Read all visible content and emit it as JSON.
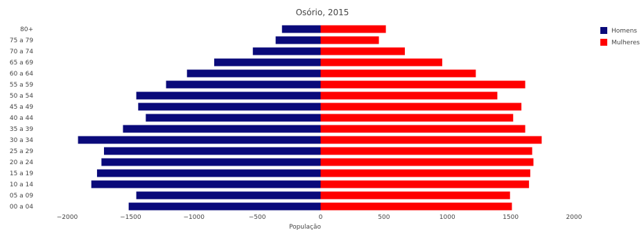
{
  "chart_data": {
    "type": "bar",
    "orientation": "horizontal",
    "title": "Osório, 2015",
    "xlabel": "População",
    "ylabel": "",
    "xlim": [
      -2000,
      2000
    ],
    "x_ticks": [
      -2000,
      -1500,
      -1000,
      -500,
      0,
      500,
      1000,
      1500,
      2000
    ],
    "grid": false,
    "legend_position": "top-right",
    "categories": [
      "80+",
      "75 a 79",
      "70 a 74",
      "65 a 69",
      "60 a 64",
      "55 a 59",
      "50 a 54",
      "45 a 49",
      "40 a 44",
      "35 a 39",
      "30 a 34",
      "25 a 29",
      "20 a 24",
      "15 a 19",
      "10 a 14",
      "05 a 09",
      "00 a 04"
    ],
    "series": [
      {
        "name": "Homens",
        "color": "#0a0a7a",
        "values": [
          -305,
          -355,
          -535,
          -840,
          -1055,
          -1220,
          -1455,
          -1440,
          -1380,
          -1560,
          -1915,
          -1710,
          -1730,
          -1765,
          -1810,
          -1455,
          -1515
        ]
      },
      {
        "name": "Mulheres",
        "color": "#ff0000",
        "values": [
          515,
          460,
          665,
          960,
          1225,
          1615,
          1395,
          1585,
          1520,
          1615,
          1745,
          1670,
          1680,
          1655,
          1645,
          1495,
          1510
        ]
      }
    ]
  }
}
